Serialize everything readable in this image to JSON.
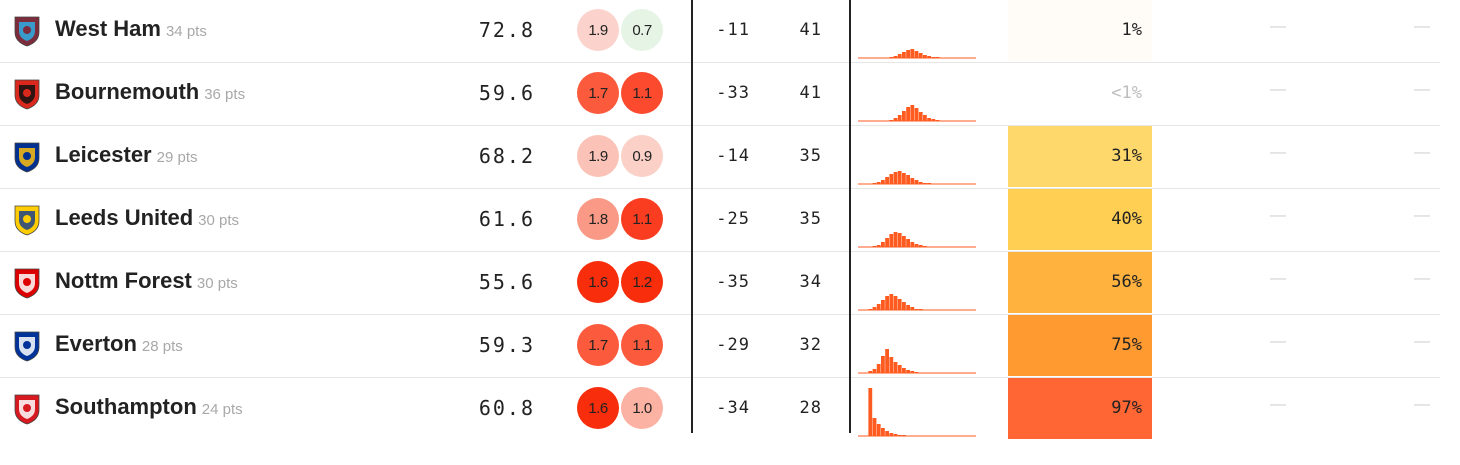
{
  "rows": [
    {
      "team": "West Ham",
      "points": "34 pts",
      "spi": "72.8",
      "off": "1.9",
      "def": "0.7",
      "off_color": "#fbd3cc",
      "off_text": "#222",
      "def_color": "#e6f4e6",
      "def_text": "#222",
      "gd": "-11",
      "proj_pts": "41",
      "relegation": "1%",
      "rel_bg": "#fffcf7",
      "rel_text": "#222",
      "dash1": "—",
      "dash2": "—",
      "crest_icon": "west-ham-crest-icon",
      "crest_colors": [
        "#7c2c3b",
        "#2dafe5"
      ],
      "hist": [
        0,
        0,
        0,
        0,
        0,
        0,
        0,
        1,
        2,
        4,
        6,
        8,
        9,
        7,
        5,
        3,
        2,
        1,
        1,
        0,
        0,
        0,
        0,
        0,
        0,
        0,
        0,
        0
      ]
    },
    {
      "team": "Bournemouth",
      "points": "36 pts",
      "spi": "59.6",
      "off": "1.7",
      "def": "1.1",
      "off_color": "#fc5a3c",
      "off_text": "#222",
      "def_color": "#fc4a2e",
      "def_text": "#222",
      "gd": "-33",
      "proj_pts": "41",
      "relegation": "<1%",
      "rel_bg": "#ffffff",
      "rel_text": "#bdbdbd",
      "dash1": "—",
      "dash2": "—",
      "crest_icon": "bournemouth-crest-icon",
      "crest_colors": [
        "#da291c",
        "#111111"
      ],
      "hist": [
        0,
        0,
        0,
        0,
        0,
        0,
        0,
        1,
        3,
        6,
        10,
        14,
        16,
        13,
        9,
        6,
        3,
        2,
        1,
        0,
        0,
        0,
        0,
        0,
        0,
        0,
        0,
        0
      ]
    },
    {
      "team": "Leicester",
      "points": "29 pts",
      "spi": "68.2",
      "off": "1.9",
      "def": "0.9",
      "off_color": "#fbc3b7",
      "off_text": "#222",
      "def_color": "#fbd0c6",
      "def_text": "#222",
      "gd": "-14",
      "proj_pts": "35",
      "relegation": "31%",
      "rel_bg": "#ffd86b",
      "rel_text": "#222",
      "dash1": "—",
      "dash2": "—",
      "crest_icon": "leicester-crest-icon",
      "crest_colors": [
        "#003090",
        "#fdbe11"
      ],
      "hist": [
        0,
        0,
        0,
        1,
        2,
        4,
        7,
        10,
        12,
        13,
        11,
        9,
        6,
        4,
        2,
        1,
        1,
        0,
        0,
        0,
        0,
        0,
        0,
        0,
        0,
        0,
        0,
        0
      ]
    },
    {
      "team": "Leeds United",
      "points": "30 pts",
      "spi": "61.6",
      "off": "1.8",
      "def": "1.1",
      "off_color": "#fa9a86",
      "off_text": "#222",
      "def_color": "#fa3c20",
      "def_text": "#222",
      "gd": "-25",
      "proj_pts": "35",
      "relegation": "40%",
      "rel_bg": "#ffcf53",
      "rel_text": "#222",
      "dash1": "—",
      "dash2": "—",
      "crest_icon": "leeds-crest-icon",
      "crest_colors": [
        "#ffcd00",
        "#1d428a"
      ],
      "hist": [
        0,
        0,
        0,
        1,
        2,
        5,
        9,
        13,
        15,
        14,
        11,
        8,
        5,
        3,
        2,
        1,
        0,
        0,
        0,
        0,
        0,
        0,
        0,
        0,
        0,
        0,
        0,
        0
      ]
    },
    {
      "team": "Nottm Forest",
      "points": "30 pts",
      "spi": "55.6",
      "off": "1.6",
      "def": "1.2",
      "off_color": "#f72d0c",
      "off_text": "#222",
      "def_color": "#f72d0c",
      "def_text": "#222",
      "gd": "-35",
      "proj_pts": "34",
      "relegation": "56%",
      "rel_bg": "#ffb23d",
      "rel_text": "#222",
      "dash1": "—",
      "dash2": "—",
      "crest_icon": "nottm-forest-crest-icon",
      "crest_colors": [
        "#dd0000",
        "#ffffff"
      ],
      "hist": [
        0,
        0,
        1,
        3,
        6,
        10,
        14,
        16,
        14,
        11,
        8,
        5,
        3,
        1,
        1,
        0,
        0,
        0,
        0,
        0,
        0,
        0,
        0,
        0,
        0,
        0,
        0,
        0
      ]
    },
    {
      "team": "Everton",
      "points": "28 pts",
      "spi": "59.3",
      "off": "1.7",
      "def": "1.1",
      "off_color": "#fc5a3c",
      "off_text": "#222",
      "def_color": "#fc5a3c",
      "def_text": "#222",
      "gd": "-29",
      "proj_pts": "32",
      "relegation": "75%",
      "rel_bg": "#ff9a30",
      "rel_text": "#222",
      "dash1": "—",
      "dash2": "—",
      "crest_icon": "everton-crest-icon",
      "crest_colors": [
        "#003399",
        "#ffffff"
      ],
      "hist": [
        0,
        0,
        2,
        4,
        9,
        17,
        24,
        16,
        11,
        8,
        5,
        3,
        2,
        1,
        0,
        0,
        0,
        0,
        0,
        0,
        0,
        0,
        0,
        0,
        0,
        0,
        0,
        0
      ]
    },
    {
      "team": "Southampton",
      "points": "24 pts",
      "spi": "60.8",
      "off": "1.6",
      "def": "1.0",
      "off_color": "#f72d0c",
      "off_text": "#222",
      "def_color": "#fbb2a2",
      "def_text": "#222",
      "gd": "-34",
      "proj_pts": "28",
      "relegation": "97%",
      "rel_bg": "#ff6633",
      "rel_text": "#222",
      "dash1": "—",
      "dash2": "—",
      "crest_icon": "southampton-crest-icon",
      "crest_colors": [
        "#d71920",
        "#ffffff"
      ],
      "hist": [
        0,
        0,
        48,
        18,
        12,
        8,
        5,
        3,
        2,
        1,
        1,
        0,
        0,
        0,
        0,
        0,
        0,
        0,
        0,
        0,
        0,
        0,
        0,
        0,
        0,
        0,
        0,
        0
      ]
    }
  ],
  "colors": {
    "hist_bar": "#ff5a1f",
    "divider": "#222222",
    "row_border": "#e6e6e6"
  }
}
